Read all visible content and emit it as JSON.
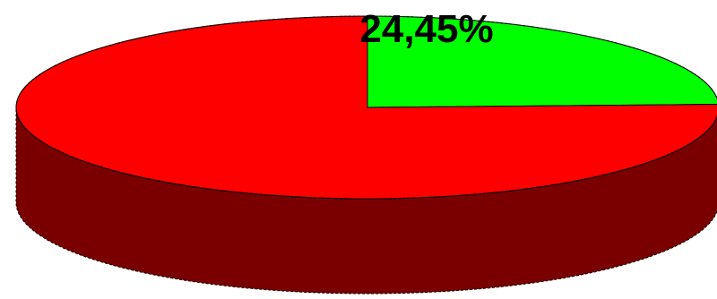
{
  "chart_data": {
    "type": "pie",
    "style": "3d",
    "slices": [
      {
        "value": 24.45,
        "label": "24,45%",
        "color": "#00ff00",
        "side_color": "#007a00"
      },
      {
        "value": 75.55,
        "label": "",
        "color": "#ff0000",
        "side_color": "#7a0000"
      }
    ],
    "start_angle_degrees": 90,
    "direction": "clockwise",
    "outline_color": "#000000"
  }
}
